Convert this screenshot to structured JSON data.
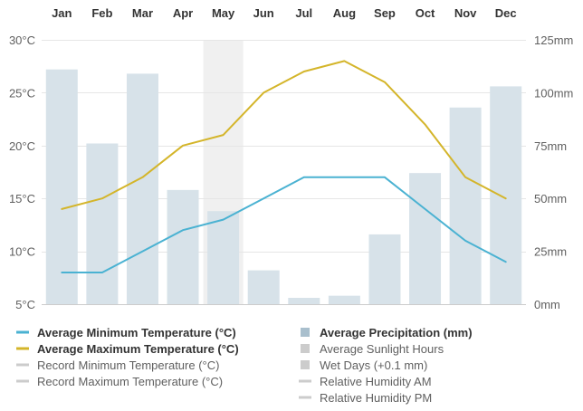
{
  "chart_data": {
    "type": "bar",
    "categories": [
      "Jan",
      "Feb",
      "Mar",
      "Apr",
      "May",
      "Jun",
      "Jul",
      "Aug",
      "Sep",
      "Oct",
      "Nov",
      "Dec"
    ],
    "highlighted_category": "May",
    "y_left": {
      "ticks": [
        "5°C",
        "10°C",
        "15°C",
        "20°C",
        "25°C",
        "30°C"
      ],
      "tick_values": [
        5,
        10,
        15,
        20,
        25,
        30
      ],
      "ylim": [
        5,
        30
      ]
    },
    "y_right": {
      "ticks": [
        "0mm",
        "25mm",
        "50mm",
        "75mm",
        "100mm",
        "125mm"
      ],
      "tick_values": [
        0,
        25,
        50,
        75,
        100,
        125
      ],
      "ylim": [
        0,
        125
      ]
    },
    "grid": true,
    "series": [
      {
        "name": "Average Precipitation (mm)",
        "type": "bar",
        "axis": "right",
        "color": "#d7e2e9",
        "values": [
          111,
          76,
          109,
          54,
          44,
          16,
          3,
          4,
          33,
          62,
          93,
          103
        ]
      },
      {
        "name": "Average Minimum Temperature (°C)",
        "type": "line",
        "axis": "left",
        "color": "#4ab2d2",
        "values": [
          8,
          8,
          10,
          12,
          13,
          15,
          17,
          17,
          17,
          14,
          11,
          9
        ]
      },
      {
        "name": "Average Maximum Temperature (°C)",
        "type": "line",
        "axis": "left",
        "color": "#d4b52a",
        "values": [
          14,
          15,
          17,
          20,
          21,
          25,
          27,
          28,
          26,
          22,
          17,
          15
        ]
      }
    ],
    "legend": {
      "placement": "bottom",
      "left": [
        {
          "label": "Average Minimum Temperature (°C)",
          "color": "#4ab2d2",
          "marker": "line",
          "active": true
        },
        {
          "label": "Average Maximum Temperature (°C)",
          "color": "#d4b52a",
          "marker": "line",
          "active": true
        },
        {
          "label": "Record Minimum Temperature (°C)",
          "color": "#cccccc",
          "marker": "line",
          "active": false
        },
        {
          "label": "Record Maximum Temperature (°C)",
          "color": "#cccccc",
          "marker": "line",
          "active": false
        }
      ],
      "right": [
        {
          "label": "Average Precipitation (mm)",
          "color": "#a9bfcd",
          "marker": "square",
          "active": true
        },
        {
          "label": "Average Sunlight Hours",
          "color": "#cccccc",
          "marker": "square",
          "active": false
        },
        {
          "label": "Wet Days (+0.1 mm)",
          "color": "#cccccc",
          "marker": "square",
          "active": false
        },
        {
          "label": "Relative Humidity AM",
          "color": "#cccccc",
          "marker": "line",
          "active": false
        },
        {
          "label": "Relative Humidity PM",
          "color": "#cccccc",
          "marker": "line",
          "active": false
        }
      ]
    }
  }
}
